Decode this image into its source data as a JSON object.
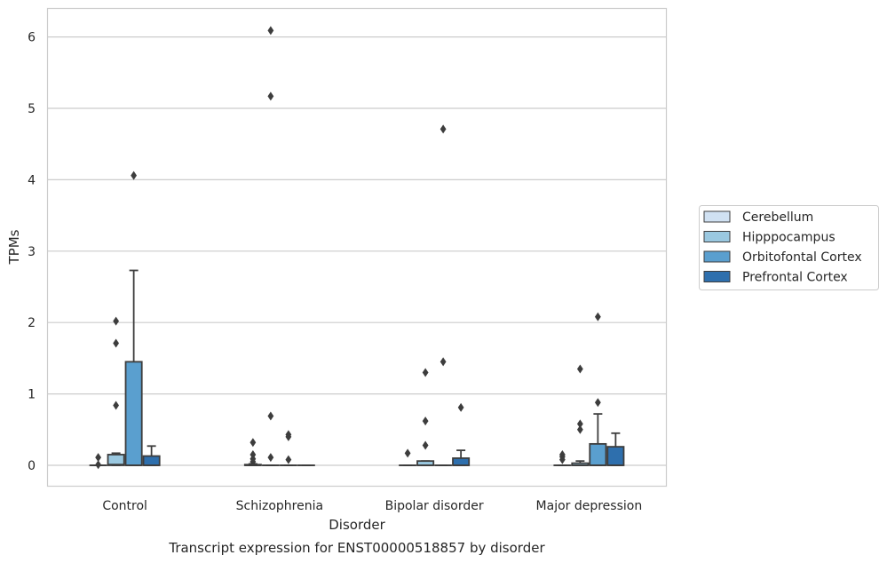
{
  "chart_data": {
    "type": "box",
    "title": "",
    "caption": "Transcript expression for ENST00000518857 by disorder",
    "xlabel": "Disorder",
    "ylabel": "TPMs",
    "categories": [
      "Control",
      "Schizophrenia",
      "Bipolar disorder",
      "Major depression"
    ],
    "ylim": [
      -0.3,
      6.4
    ],
    "yticks": [
      0,
      1,
      2,
      3,
      4,
      5,
      6
    ],
    "grid": true,
    "legend_position": "right",
    "series": [
      {
        "name": "Cerebellum",
        "color": "#d0e1f2",
        "boxes": [
          {
            "q1": 0,
            "median": 0,
            "q3": 0,
            "whisker_low": 0,
            "whisker_high": 0,
            "outliers": [
              0.11,
              0.01
            ]
          },
          {
            "q1": 0,
            "median": 0,
            "q3": 0.01,
            "whisker_low": 0,
            "whisker_high": 0.02,
            "outliers": [
              0.15,
              0.09,
              0.05,
              0.32
            ]
          },
          {
            "q1": 0,
            "median": 0,
            "q3": 0,
            "whisker_low": 0,
            "whisker_high": 0,
            "outliers": [
              0.17
            ]
          },
          {
            "q1": 0,
            "median": 0,
            "q3": 0,
            "whisker_low": 0,
            "whisker_high": 0,
            "outliers": [
              0.15,
              0.12,
              0.08
            ]
          }
        ]
      },
      {
        "name": "Hipppocampus",
        "color": "#9ac8e0",
        "boxes": [
          {
            "q1": 0,
            "median": 0.01,
            "q3": 0.15,
            "whisker_low": 0,
            "whisker_high": 0.17,
            "outliers": [
              2.02,
              1.71,
              0.84
            ]
          },
          {
            "q1": 0,
            "median": 0,
            "q3": 0,
            "whisker_low": 0,
            "whisker_high": 0,
            "outliers": [
              6.09,
              5.17,
              0.69,
              0.11
            ]
          },
          {
            "q1": 0,
            "median": 0,
            "q3": 0.06,
            "whisker_low": 0,
            "whisker_high": 0.06,
            "outliers": [
              1.3,
              0.62,
              0.28
            ]
          },
          {
            "q1": 0,
            "median": 0,
            "q3": 0.03,
            "whisker_low": 0,
            "whisker_high": 0.06,
            "outliers": [
              1.35,
              0.58,
              0.5
            ]
          }
        ]
      },
      {
        "name": "Orbitofontal Cortex",
        "color": "#5a9fcf",
        "boxes": [
          {
            "q1": 0,
            "median": 0,
            "q3": 1.45,
            "whisker_low": 0,
            "whisker_high": 2.73,
            "outliers": [
              4.06
            ]
          },
          {
            "q1": 0,
            "median": 0,
            "q3": 0,
            "whisker_low": 0,
            "whisker_high": 0,
            "outliers": [
              0.43,
              0.4,
              0.08
            ]
          },
          {
            "q1": 0,
            "median": 0,
            "q3": 0,
            "whisker_low": 0,
            "whisker_high": 0,
            "outliers": [
              4.71,
              1.45
            ]
          },
          {
            "q1": 0,
            "median": 0,
            "q3": 0.3,
            "whisker_low": 0,
            "whisker_high": 0.72,
            "outliers": [
              2.08,
              0.88
            ]
          }
        ]
      },
      {
        "name": "Prefrontal Cortex",
        "color": "#2e6fad",
        "boxes": [
          {
            "q1": 0,
            "median": 0,
            "q3": 0.13,
            "whisker_low": 0,
            "whisker_high": 0.27,
            "outliers": []
          },
          {
            "q1": 0,
            "median": 0,
            "q3": 0,
            "whisker_low": 0,
            "whisker_high": 0,
            "outliers": []
          },
          {
            "q1": 0,
            "median": 0,
            "q3": 0.1,
            "whisker_low": 0,
            "whisker_high": 0.21,
            "outliers": [
              0.81
            ]
          },
          {
            "q1": 0,
            "median": 0,
            "q3": 0.26,
            "whisker_low": 0,
            "whisker_high": 0.45,
            "outliers": []
          }
        ]
      }
    ]
  }
}
